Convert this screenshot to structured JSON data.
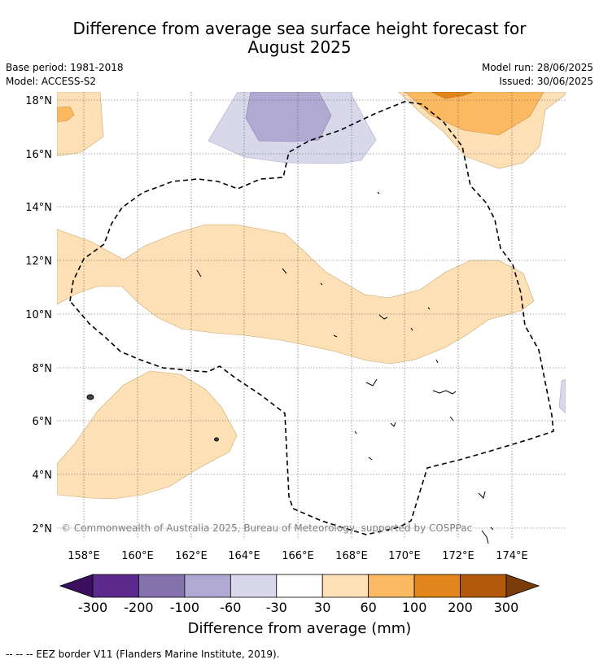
{
  "title_line1": "Difference from average sea surface height forecast for",
  "title_line2": "August 2025",
  "base_period": "Base period: 1981-2018",
  "model": "Model: ACCESS-S2",
  "model_run": "Model run: 28/06/2025",
  "issued": "Issued: 30/06/2025",
  "copyright": "© Commonwealth of Australia 2025, Bureau of Meteorology, supported by COSPPac",
  "lat_labels": [
    "18°N",
    "16°N",
    "14°N",
    "12°N",
    "10°N",
    "8°N",
    "6°N",
    "4°N",
    "2°N"
  ],
  "lon_labels": [
    "158°E",
    "160°E",
    "162°E",
    "164°E",
    "166°E",
    "168°E",
    "170°E",
    "172°E",
    "174°E"
  ],
  "colorbar": {
    "label": "Difference from average (mm)",
    "ticks": [
      "-300",
      "-200",
      "-100",
      "-60",
      "-30",
      "30",
      "60",
      "100",
      "200",
      "300"
    ],
    "colors": [
      "#3a0f5e",
      "#5c2a8d",
      "#8573b0",
      "#b0a9d1",
      "#d8d8ea",
      "#ffffff",
      "#fde0b6",
      "#fbb962",
      "#e2861c",
      "#b3590b",
      "#7a3c08"
    ]
  },
  "footer": "--  --  -- EEZ border V11 (Flanders Marine Institute, 2019)."
}
